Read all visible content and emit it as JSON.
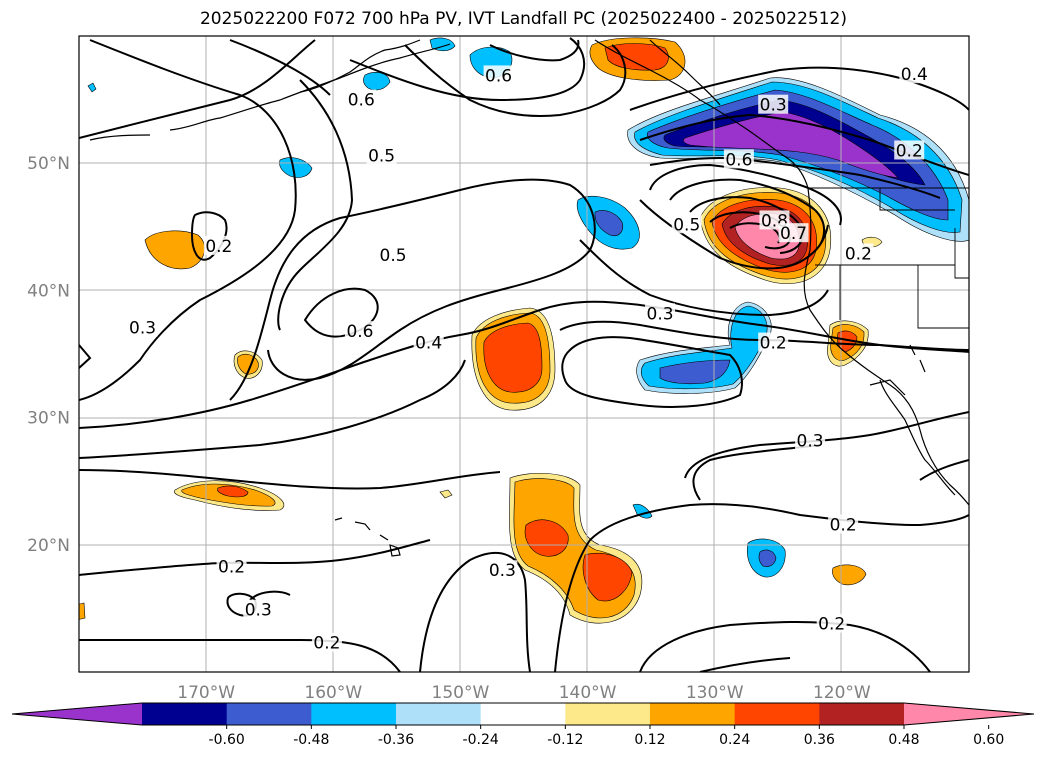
{
  "title": "2025022200 F072 700 hPa PV, IVT Landfall PC (2025022400 - 2025022512)",
  "map": {
    "lon_range": [
      -180,
      -110
    ],
    "lat_range": [
      10,
      60
    ],
    "lon_ticks": [
      {
        "value": -170,
        "label": "170°W"
      },
      {
        "value": -160,
        "label": "160°W"
      },
      {
        "value": -150,
        "label": "150°W"
      },
      {
        "value": -140,
        "label": "140°W"
      },
      {
        "value": -130,
        "label": "130°W"
      },
      {
        "value": -120,
        "label": "120°W"
      }
    ],
    "lat_ticks": [
      {
        "value": 50,
        "label": "50°N"
      },
      {
        "value": 40,
        "label": "40°N"
      },
      {
        "value": 30,
        "label": "30°N"
      },
      {
        "value": 20,
        "label": "20°N"
      }
    ],
    "contour_labels": [
      {
        "text": "0.6",
        "lon": -147,
        "lat": 56.9
      },
      {
        "text": "0.6",
        "lon": -157.8,
        "lat": 55.0
      },
      {
        "text": "0.5",
        "lon": -156.2,
        "lat": 50.6
      },
      {
        "text": "0.3",
        "lon": -125.4,
        "lat": 54.6
      },
      {
        "text": "0.4",
        "lon": -114.3,
        "lat": 57.0
      },
      {
        "text": "0.6",
        "lon": -128.1,
        "lat": 50.3
      },
      {
        "text": "0.2",
        "lon": -114.7,
        "lat": 51.0
      },
      {
        "text": "0.5",
        "lon": -132.2,
        "lat": 45.2
      },
      {
        "text": "0.8",
        "lon": -125.3,
        "lat": 45.5
      },
      {
        "text": "0.7",
        "lon": -123.8,
        "lat": 44.5
      },
      {
        "text": "0.2",
        "lon": -118.7,
        "lat": 42.9
      },
      {
        "text": "0.2",
        "lon": -169.0,
        "lat": 43.5
      },
      {
        "text": "0.5",
        "lon": -155.3,
        "lat": 42.8
      },
      {
        "text": "0.6",
        "lon": -157.9,
        "lat": 36.8
      },
      {
        "text": "0.4",
        "lon": -152.5,
        "lat": 35.9
      },
      {
        "text": "0.3",
        "lon": -175.0,
        "lat": 37.1
      },
      {
        "text": "0.3",
        "lon": -134.3,
        "lat": 38.2
      },
      {
        "text": "0.2",
        "lon": -125.4,
        "lat": 35.9
      },
      {
        "text": "0.3",
        "lon": -122.5,
        "lat": 28.2
      },
      {
        "text": "0.2",
        "lon": -168.0,
        "lat": 18.3
      },
      {
        "text": "0.3",
        "lon": -146.7,
        "lat": 18.0
      },
      {
        "text": "0.2",
        "lon": -119.9,
        "lat": 21.6
      },
      {
        "text": "0.3",
        "lon": -165.9,
        "lat": 14.9
      },
      {
        "text": "0.2",
        "lon": -120.8,
        "lat": 13.8
      },
      {
        "text": "0.2",
        "lon": -160.5,
        "lat": 12.3
      }
    ]
  },
  "colorbar": {
    "levels": [
      "-0.60",
      "-0.48",
      "-0.36",
      "-0.24",
      "-0.12",
      "0.12",
      "0.24",
      "0.36",
      "0.48",
      "0.60"
    ],
    "colors": [
      "#9933cc",
      "#000090",
      "#3d5cd0",
      "#00bfff",
      "#aee0fa",
      "#ffffff",
      "#fde98a",
      "#ffa500",
      "#ff4500",
      "#b22222",
      "#ff88aa"
    ],
    "extend": "both"
  }
}
